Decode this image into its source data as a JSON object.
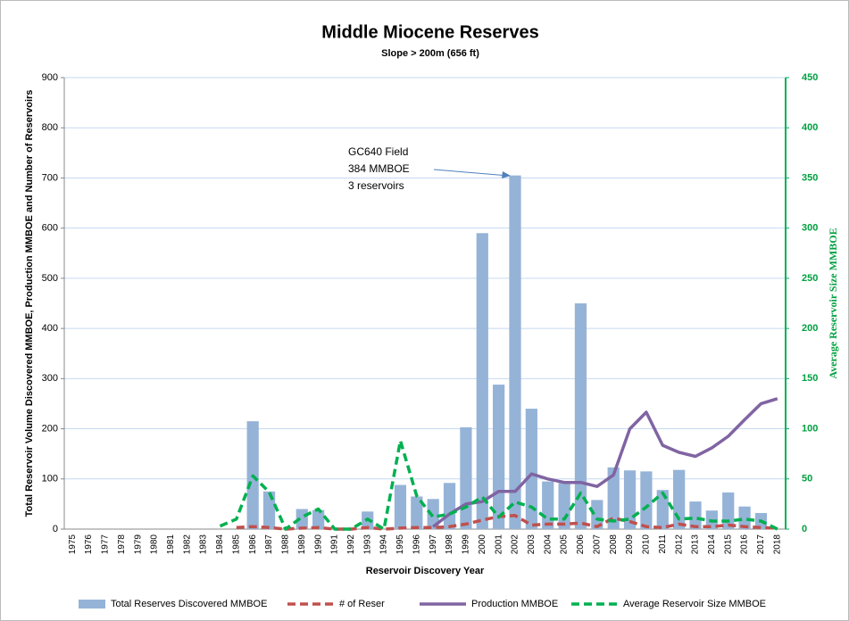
{
  "chart_data": {
    "type": "combo",
    "title": "Middle Miocene Reserves",
    "subtitle": "Slope > 200m (656 ft)",
    "y_label": "Total Reservoir Volume Discovered MMBOE, Production MMBOE and Number of Reservoirs",
    "y2_label": "Average Reservoir Size MMBOE",
    "x_label": "Reservoir Discovery Year",
    "annotation": {
      "lines": [
        "GC640 Field",
        "384 MMBOE",
        "3 reservoirs"
      ]
    },
    "categories": [
      "1975",
      "1976",
      "1977",
      "1978",
      "1979",
      "1980",
      "1981",
      "1982",
      "1983",
      "1984",
      "1985",
      "1986",
      "1987",
      "1988",
      "1989",
      "1990",
      "1991",
      "1992",
      "1993",
      "1994",
      "1995",
      "1996",
      "1997",
      "1998",
      "1999",
      "2000",
      "2001",
      "2002",
      "2003",
      "2004",
      "2005",
      "2006",
      "2007",
      "2008",
      "2009",
      "2010",
      "2011",
      "2012",
      "2013",
      "2014",
      "2015",
      "2016",
      "2017",
      "2018"
    ],
    "ylim": [
      0,
      900
    ],
    "yticks": [
      0,
      100,
      200,
      300,
      400,
      500,
      600,
      700,
      800,
      900
    ],
    "y2lim": [
      0,
      450
    ],
    "y2ticks": [
      0,
      50,
      100,
      150,
      200,
      250,
      300,
      350,
      400,
      450
    ],
    "grid": true,
    "series": [
      {
        "name": "Total Reserves Discovered MMBOE",
        "type": "bar",
        "color": "#95b3d7",
        "values": [
          null,
          null,
          null,
          null,
          null,
          null,
          null,
          null,
          null,
          null,
          null,
          215,
          75,
          null,
          40,
          38,
          null,
          null,
          35,
          null,
          88,
          65,
          60,
          92,
          203,
          590,
          288,
          705,
          240,
          95,
          92,
          450,
          58,
          123,
          117,
          115,
          78,
          118,
          55,
          37,
          73,
          45,
          32,
          null
        ]
      },
      {
        "name": "# of Reser",
        "type": "line",
        "dash": true,
        "color": "#c0504d",
        "values": [
          null,
          null,
          null,
          null,
          null,
          null,
          null,
          null,
          null,
          null,
          3,
          5,
          3,
          0,
          2,
          3,
          0,
          0,
          3,
          0,
          2,
          3,
          3,
          5,
          10,
          18,
          25,
          27,
          8,
          10,
          10,
          12,
          5,
          22,
          15,
          5,
          3,
          10,
          5,
          5,
          8,
          5,
          3,
          2
        ]
      },
      {
        "name": "Production MMBOE",
        "type": "line",
        "dash": false,
        "color": "#8064a2",
        "values": [
          null,
          null,
          null,
          null,
          null,
          null,
          null,
          null,
          null,
          null,
          null,
          null,
          null,
          null,
          null,
          null,
          null,
          null,
          null,
          null,
          null,
          null,
          5,
          30,
          50,
          55,
          75,
          75,
          110,
          100,
          93,
          93,
          85,
          108,
          200,
          233,
          167,
          153,
          145,
          162,
          185,
          218,
          250,
          260
        ]
      },
      {
        "name": "Average Reservoir Size MMBOE",
        "type": "line",
        "dash": true,
        "axis": "y2",
        "color": "#00b050",
        "values": [
          null,
          null,
          null,
          null,
          null,
          null,
          null,
          null,
          null,
          3,
          10,
          53,
          37,
          0,
          12,
          20,
          0,
          0,
          10,
          0,
          88,
          33,
          12,
          15,
          22,
          32,
          12,
          27,
          22,
          10,
          10,
          36,
          10,
          8,
          10,
          22,
          36,
          10,
          11,
          8,
          8,
          10,
          8,
          0
        ]
      }
    ]
  }
}
